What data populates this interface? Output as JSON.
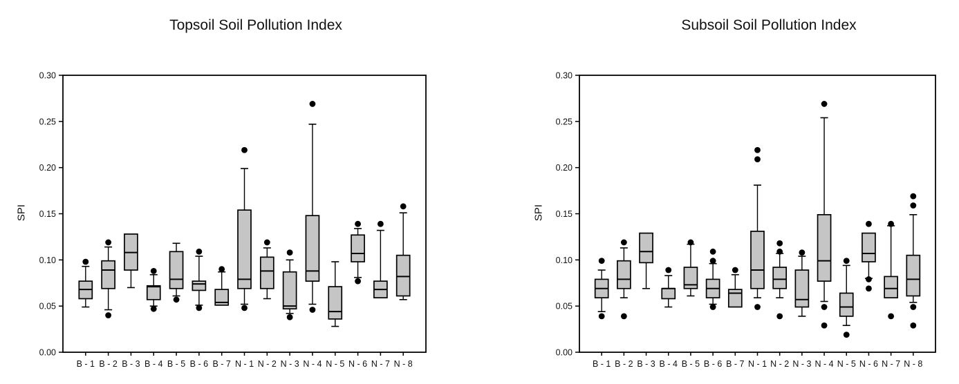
{
  "page": {
    "background": "#ffffff"
  },
  "chart_data": [
    {
      "type": "box",
      "title": "Topsoil Soil Pollution Index",
      "ylabel": "SPI",
      "xlabel": "",
      "ylim": [
        0.0,
        0.3
      ],
      "ytick_step": 0.05,
      "ytick_labels": [
        "0.00",
        "0.05",
        "0.10",
        "0.15",
        "0.20",
        "0.25",
        "0.30"
      ],
      "grid": false,
      "legend": "none",
      "box_fill": "#c5c5c5",
      "line_color": "#000000",
      "categories": [
        "B - 1",
        "B - 2",
        "B - 3",
        "B - 4",
        "B - 5",
        "B - 6",
        "B - 7",
        "N - 1",
        "N - 2",
        "N - 3",
        "N - 4",
        "N - 5",
        "N - 6",
        "N - 7",
        "N - 8"
      ],
      "boxes": [
        {
          "label": "B - 1",
          "whisker_low": 0.049,
          "q1": 0.058,
          "median": 0.068,
          "q3": 0.077,
          "whisker_high": 0.093,
          "outliers": [
            0.098
          ]
        },
        {
          "label": "B - 2",
          "whisker_low": 0.046,
          "q1": 0.069,
          "median": 0.089,
          "q3": 0.099,
          "whisker_high": 0.114,
          "outliers": [
            0.119,
            0.04
          ]
        },
        {
          "label": "B - 3",
          "whisker_low": 0.07,
          "q1": 0.089,
          "median": 0.108,
          "q3": 0.128,
          "whisker_high": 0.128,
          "outliers": []
        },
        {
          "label": "B - 4",
          "whisker_low": 0.05,
          "q1": 0.057,
          "median": 0.071,
          "q3": 0.072,
          "whisker_high": 0.084,
          "outliers": [
            0.088,
            0.047
          ]
        },
        {
          "label": "B - 5",
          "whisker_low": 0.061,
          "q1": 0.069,
          "median": 0.079,
          "q3": 0.109,
          "whisker_high": 0.118,
          "outliers": [
            0.057
          ]
        },
        {
          "label": "B - 6",
          "whisker_low": 0.051,
          "q1": 0.067,
          "median": 0.074,
          "q3": 0.077,
          "whisker_high": 0.104,
          "outliers": [
            0.109,
            0.048
          ]
        },
        {
          "label": "B - 7",
          "whisker_low": 0.051,
          "q1": 0.051,
          "median": 0.054,
          "q3": 0.068,
          "whisker_high": 0.087,
          "outliers": [
            0.09
          ]
        },
        {
          "label": "N - 1",
          "whisker_low": 0.052,
          "q1": 0.069,
          "median": 0.079,
          "q3": 0.154,
          "whisker_high": 0.199,
          "outliers": [
            0.219,
            0.048
          ]
        },
        {
          "label": "N - 2",
          "whisker_low": 0.058,
          "q1": 0.069,
          "median": 0.088,
          "q3": 0.103,
          "whisker_high": 0.113,
          "outliers": [
            0.119
          ]
        },
        {
          "label": "N - 3",
          "whisker_low": 0.042,
          "q1": 0.047,
          "median": 0.05,
          "q3": 0.087,
          "whisker_high": 0.1,
          "outliers": [
            0.108,
            0.038
          ]
        },
        {
          "label": "N - 4",
          "whisker_low": 0.052,
          "q1": 0.077,
          "median": 0.088,
          "q3": 0.148,
          "whisker_high": 0.247,
          "outliers": [
            0.269,
            0.046
          ]
        },
        {
          "label": "N - 5",
          "whisker_low": 0.028,
          "q1": 0.036,
          "median": 0.044,
          "q3": 0.071,
          "whisker_high": 0.098,
          "outliers": []
        },
        {
          "label": "N - 6",
          "whisker_low": 0.081,
          "q1": 0.098,
          "median": 0.107,
          "q3": 0.127,
          "whisker_high": 0.134,
          "outliers": [
            0.139,
            0.077
          ]
        },
        {
          "label": "N - 7",
          "whisker_low": 0.059,
          "q1": 0.059,
          "median": 0.068,
          "q3": 0.077,
          "whisker_high": 0.132,
          "outliers": [
            0.139
          ]
        },
        {
          "label": "N - 8",
          "whisker_low": 0.057,
          "q1": 0.061,
          "median": 0.082,
          "q3": 0.105,
          "whisker_high": 0.151,
          "outliers": [
            0.158
          ]
        }
      ]
    },
    {
      "type": "box",
      "title": "Subsoil Soil Pollution Index",
      "ylabel": "SPI",
      "xlabel": "",
      "ylim": [
        0.0,
        0.3
      ],
      "ytick_step": 0.05,
      "ytick_labels": [
        "0.00",
        "0.05",
        "0.10",
        "0.15",
        "0.20",
        "0.25",
        "0.30"
      ],
      "grid": false,
      "legend": "none",
      "box_fill": "#c5c5c5",
      "line_color": "#000000",
      "categories": [
        "B - 1",
        "B - 2",
        "B - 3",
        "B - 4",
        "B - 5",
        "B - 6",
        "B - 7",
        "N - 1",
        "N - 2",
        "N - 3",
        "N - 4",
        "N - 5",
        "N - 6",
        "N - 7",
        "N - 8"
      ],
      "boxes": [
        {
          "label": "B - 1",
          "whisker_low": 0.044,
          "q1": 0.059,
          "median": 0.069,
          "q3": 0.079,
          "whisker_high": 0.089,
          "outliers": [
            0.099,
            0.039
          ]
        },
        {
          "label": "B - 2",
          "whisker_low": 0.059,
          "q1": 0.069,
          "median": 0.079,
          "q3": 0.099,
          "whisker_high": 0.113,
          "outliers": [
            0.119,
            0.039
          ]
        },
        {
          "label": "B - 3",
          "whisker_low": 0.069,
          "q1": 0.097,
          "median": 0.109,
          "q3": 0.129,
          "whisker_high": 0.129,
          "outliers": []
        },
        {
          "label": "B - 4",
          "whisker_low": 0.049,
          "q1": 0.058,
          "median": 0.069,
          "q3": 0.069,
          "whisker_high": 0.083,
          "outliers": [
            0.089
          ]
        },
        {
          "label": "B - 5",
          "whisker_low": 0.061,
          "q1": 0.069,
          "median": 0.073,
          "q3": 0.092,
          "whisker_high": 0.117,
          "outliers": [
            0.119
          ]
        },
        {
          "label": "B - 6",
          "whisker_low": 0.052,
          "q1": 0.059,
          "median": 0.069,
          "q3": 0.079,
          "whisker_high": 0.096,
          "outliers": [
            0.109,
            0.099,
            0.049
          ]
        },
        {
          "label": "B - 7",
          "whisker_low": 0.049,
          "q1": 0.049,
          "median": 0.064,
          "q3": 0.068,
          "whisker_high": 0.084,
          "outliers": [
            0.089
          ]
        },
        {
          "label": "N - 1",
          "whisker_low": 0.059,
          "q1": 0.069,
          "median": 0.089,
          "q3": 0.131,
          "whisker_high": 0.181,
          "outliers": [
            0.219,
            0.209,
            0.049
          ]
        },
        {
          "label": "N - 2",
          "whisker_low": 0.059,
          "q1": 0.069,
          "median": 0.079,
          "q3": 0.092,
          "whisker_high": 0.107,
          "outliers": [
            0.118,
            0.109,
            0.039
          ]
        },
        {
          "label": "N - 3",
          "whisker_low": 0.039,
          "q1": 0.049,
          "median": 0.057,
          "q3": 0.089,
          "whisker_high": 0.104,
          "outliers": [
            0.108
          ]
        },
        {
          "label": "N - 4",
          "whisker_low": 0.055,
          "q1": 0.077,
          "median": 0.099,
          "q3": 0.149,
          "whisker_high": 0.254,
          "outliers": [
            0.269,
            0.049,
            0.029
          ]
        },
        {
          "label": "N - 5",
          "whisker_low": 0.029,
          "q1": 0.039,
          "median": 0.049,
          "q3": 0.064,
          "whisker_high": 0.094,
          "outliers": [
            0.099,
            0.019
          ]
        },
        {
          "label": "N - 6",
          "whisker_low": 0.08,
          "q1": 0.098,
          "median": 0.107,
          "q3": 0.129,
          "whisker_high": 0.129,
          "outliers": [
            0.139,
            0.079,
            0.069
          ]
        },
        {
          "label": "N - 7",
          "whisker_low": 0.059,
          "q1": 0.059,
          "median": 0.069,
          "q3": 0.082,
          "whisker_high": 0.137,
          "outliers": [
            0.139,
            0.039
          ]
        },
        {
          "label": "N - 8",
          "whisker_low": 0.054,
          "q1": 0.061,
          "median": 0.079,
          "q3": 0.105,
          "whisker_high": 0.149,
          "outliers": [
            0.169,
            0.159,
            0.049,
            0.029
          ]
        }
      ]
    }
  ]
}
